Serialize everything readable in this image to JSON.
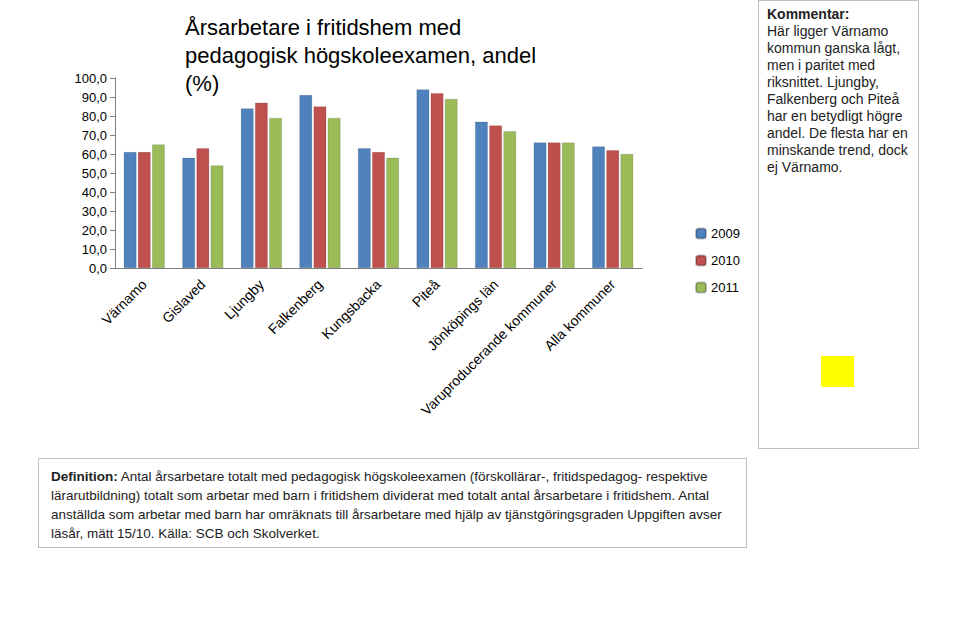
{
  "chart_data": {
    "type": "bar",
    "title": "Årsarbetare i fritidshem med pedagogisk högskoleexamen, andel (%)",
    "categories": [
      "Värnamo",
      "Gislaved",
      "Ljungby",
      "Falkenberg",
      "Kungsbacka",
      "Piteå",
      "Jönköpings län",
      "Varuproducerande kommuner",
      "Alla kommuner"
    ],
    "series": [
      {
        "name": "2009",
        "color": "#4f81bd",
        "values": [
          61,
          58,
          84,
          91,
          63,
          94,
          77,
          66,
          64
        ]
      },
      {
        "name": "2010",
        "color": "#c0504d",
        "values": [
          61,
          63,
          87,
          85,
          61,
          92,
          75,
          66,
          62
        ]
      },
      {
        "name": "2011",
        "color": "#9bbb59",
        "values": [
          65,
          54,
          79,
          79,
          58,
          89,
          72,
          66,
          60
        ]
      }
    ],
    "ylim": [
      0,
      100
    ],
    "yticks": [
      {
        "value": 0,
        "label": "0,0"
      },
      {
        "value": 10,
        "label": "10,0"
      },
      {
        "value": 20,
        "label": "20,0"
      },
      {
        "value": 30,
        "label": "30,0"
      },
      {
        "value": 40,
        "label": "40,0"
      },
      {
        "value": 50,
        "label": "50,0"
      },
      {
        "value": 60,
        "label": "60,0"
      },
      {
        "value": 70,
        "label": "70,0"
      },
      {
        "value": 80,
        "label": "80,0"
      },
      {
        "value": 90,
        "label": "90,0"
      },
      {
        "value": 100,
        "label": "100,0"
      }
    ],
    "grid": false,
    "legend": "right",
    "annotations": [
      {
        "heading": "Kommentar:",
        "text": "Här ligger Värnamo kommun ganska lågt, men i paritet med riksnittet. Ljungby, Falkenberg och Piteå har en betydligt högre andel. De flesta har en minskande trend, dock ej Värnamo."
      },
      {
        "heading": "Definition:",
        "text": "Antal årsarbetare totalt med pedagogisk högskoleexamen (förskollärar-, fritidspedagog- respektive lärarutbildning) totalt som arbetar med barn i fritidshem dividerat med totalt antal årsarbetare i fritidshem. Antal anställda som arbetar med barn har omräknats till årsarbetare med hjälp av tjänstgöringsgraden Uppgiften avser läsår, mätt 15/10. Källa: SCB och Skolverket."
      }
    ]
  }
}
